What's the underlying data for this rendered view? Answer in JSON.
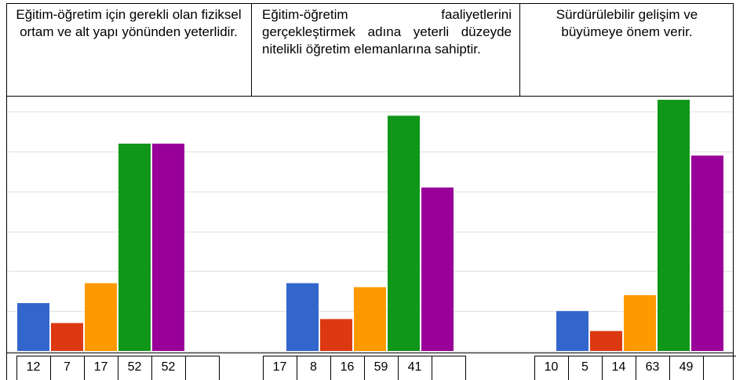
{
  "chart_data": [
    {
      "type": "bar",
      "title": "Eğitim-öğretim için gerekli olan fiziksel ortam ve alt yapı yönünden yeterlidir.",
      "values": [
        12,
        7,
        17,
        52,
        52
      ],
      "colors": [
        "#3366cc",
        "#dc3912",
        "#ff9900",
        "#109618",
        "#990099"
      ],
      "ylim": [
        0,
        64
      ],
      "yticks": [
        0,
        10,
        20,
        30,
        40,
        50,
        60
      ],
      "grid": true
    },
    {
      "type": "bar",
      "title": "Eğitim-öğretim faaliyetlerini gerçekleştirmek adına yeterli düzeyde nitelikli öğretim elemanlarına sahiptir.",
      "values": [
        17,
        8,
        16,
        59,
        41
      ],
      "colors": [
        "#3366cc",
        "#dc3912",
        "#ff9900",
        "#109618",
        "#990099"
      ],
      "ylim": [
        0,
        64
      ],
      "yticks": [
        0,
        10,
        20,
        30,
        40,
        50,
        60
      ],
      "grid": true
    },
    {
      "type": "bar",
      "title": "Sürdürülebilir gelişim ve büyümeye önem verir.",
      "values": [
        10,
        5,
        14,
        63,
        49
      ],
      "colors": [
        "#3366cc",
        "#dc3912",
        "#ff9900",
        "#109618",
        "#990099"
      ],
      "ylim": [
        0,
        64
      ],
      "yticks": [
        0,
        10,
        20,
        30,
        40,
        50,
        60
      ],
      "grid": true
    }
  ]
}
